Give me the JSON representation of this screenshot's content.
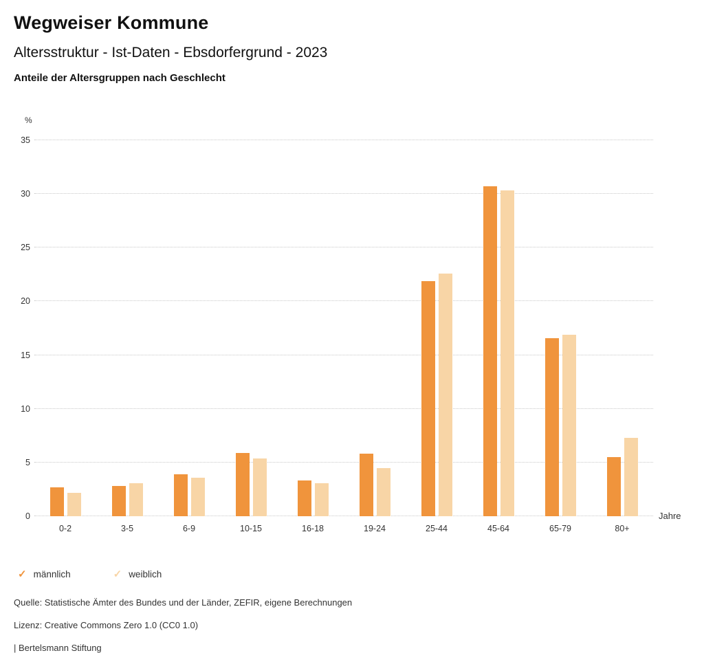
{
  "header": {
    "title": "Wegweiser Kommune",
    "subtitle": "Altersstruktur - Ist-Daten - Ebsdorfergrund - 2023",
    "chart_heading": "Anteile der Altersgruppen nach Geschlecht"
  },
  "chart_data": {
    "type": "bar",
    "title": "Anteile der Altersgruppen nach Geschlecht",
    "categories": [
      "0-2",
      "3-5",
      "6-9",
      "10-15",
      "16-18",
      "19-24",
      "25-44",
      "45-64",
      "65-79",
      "80+"
    ],
    "series": [
      {
        "name": "männlich",
        "color": "#F0943C",
        "values": [
          2.7,
          2.8,
          3.9,
          5.9,
          3.3,
          5.8,
          21.9,
          30.7,
          16.6,
          5.5
        ]
      },
      {
        "name": "weiblich",
        "color": "#F8D5A6",
        "values": [
          2.2,
          3.1,
          3.6,
          5.4,
          3.1,
          4.5,
          22.6,
          30.3,
          16.9,
          7.3
        ]
      }
    ],
    "ylabel": "%",
    "xlabel": "Jahre",
    "ylim": [
      0,
      35
    ],
    "yticks": [
      0,
      5,
      10,
      15,
      20,
      25,
      30,
      35
    ],
    "grid": "horizontal-dotted",
    "legend_position": "bottom-left"
  },
  "legend": {
    "check_glyph": "✓"
  },
  "footer": {
    "source": "Quelle: Statistische Ämter des Bundes und der Länder, ZEFIR, eigene Berechnungen",
    "license": "Lizenz: Creative Commons Zero 1.0 (CC0 1.0)",
    "attribution": "| Bertelsmann Stiftung"
  }
}
